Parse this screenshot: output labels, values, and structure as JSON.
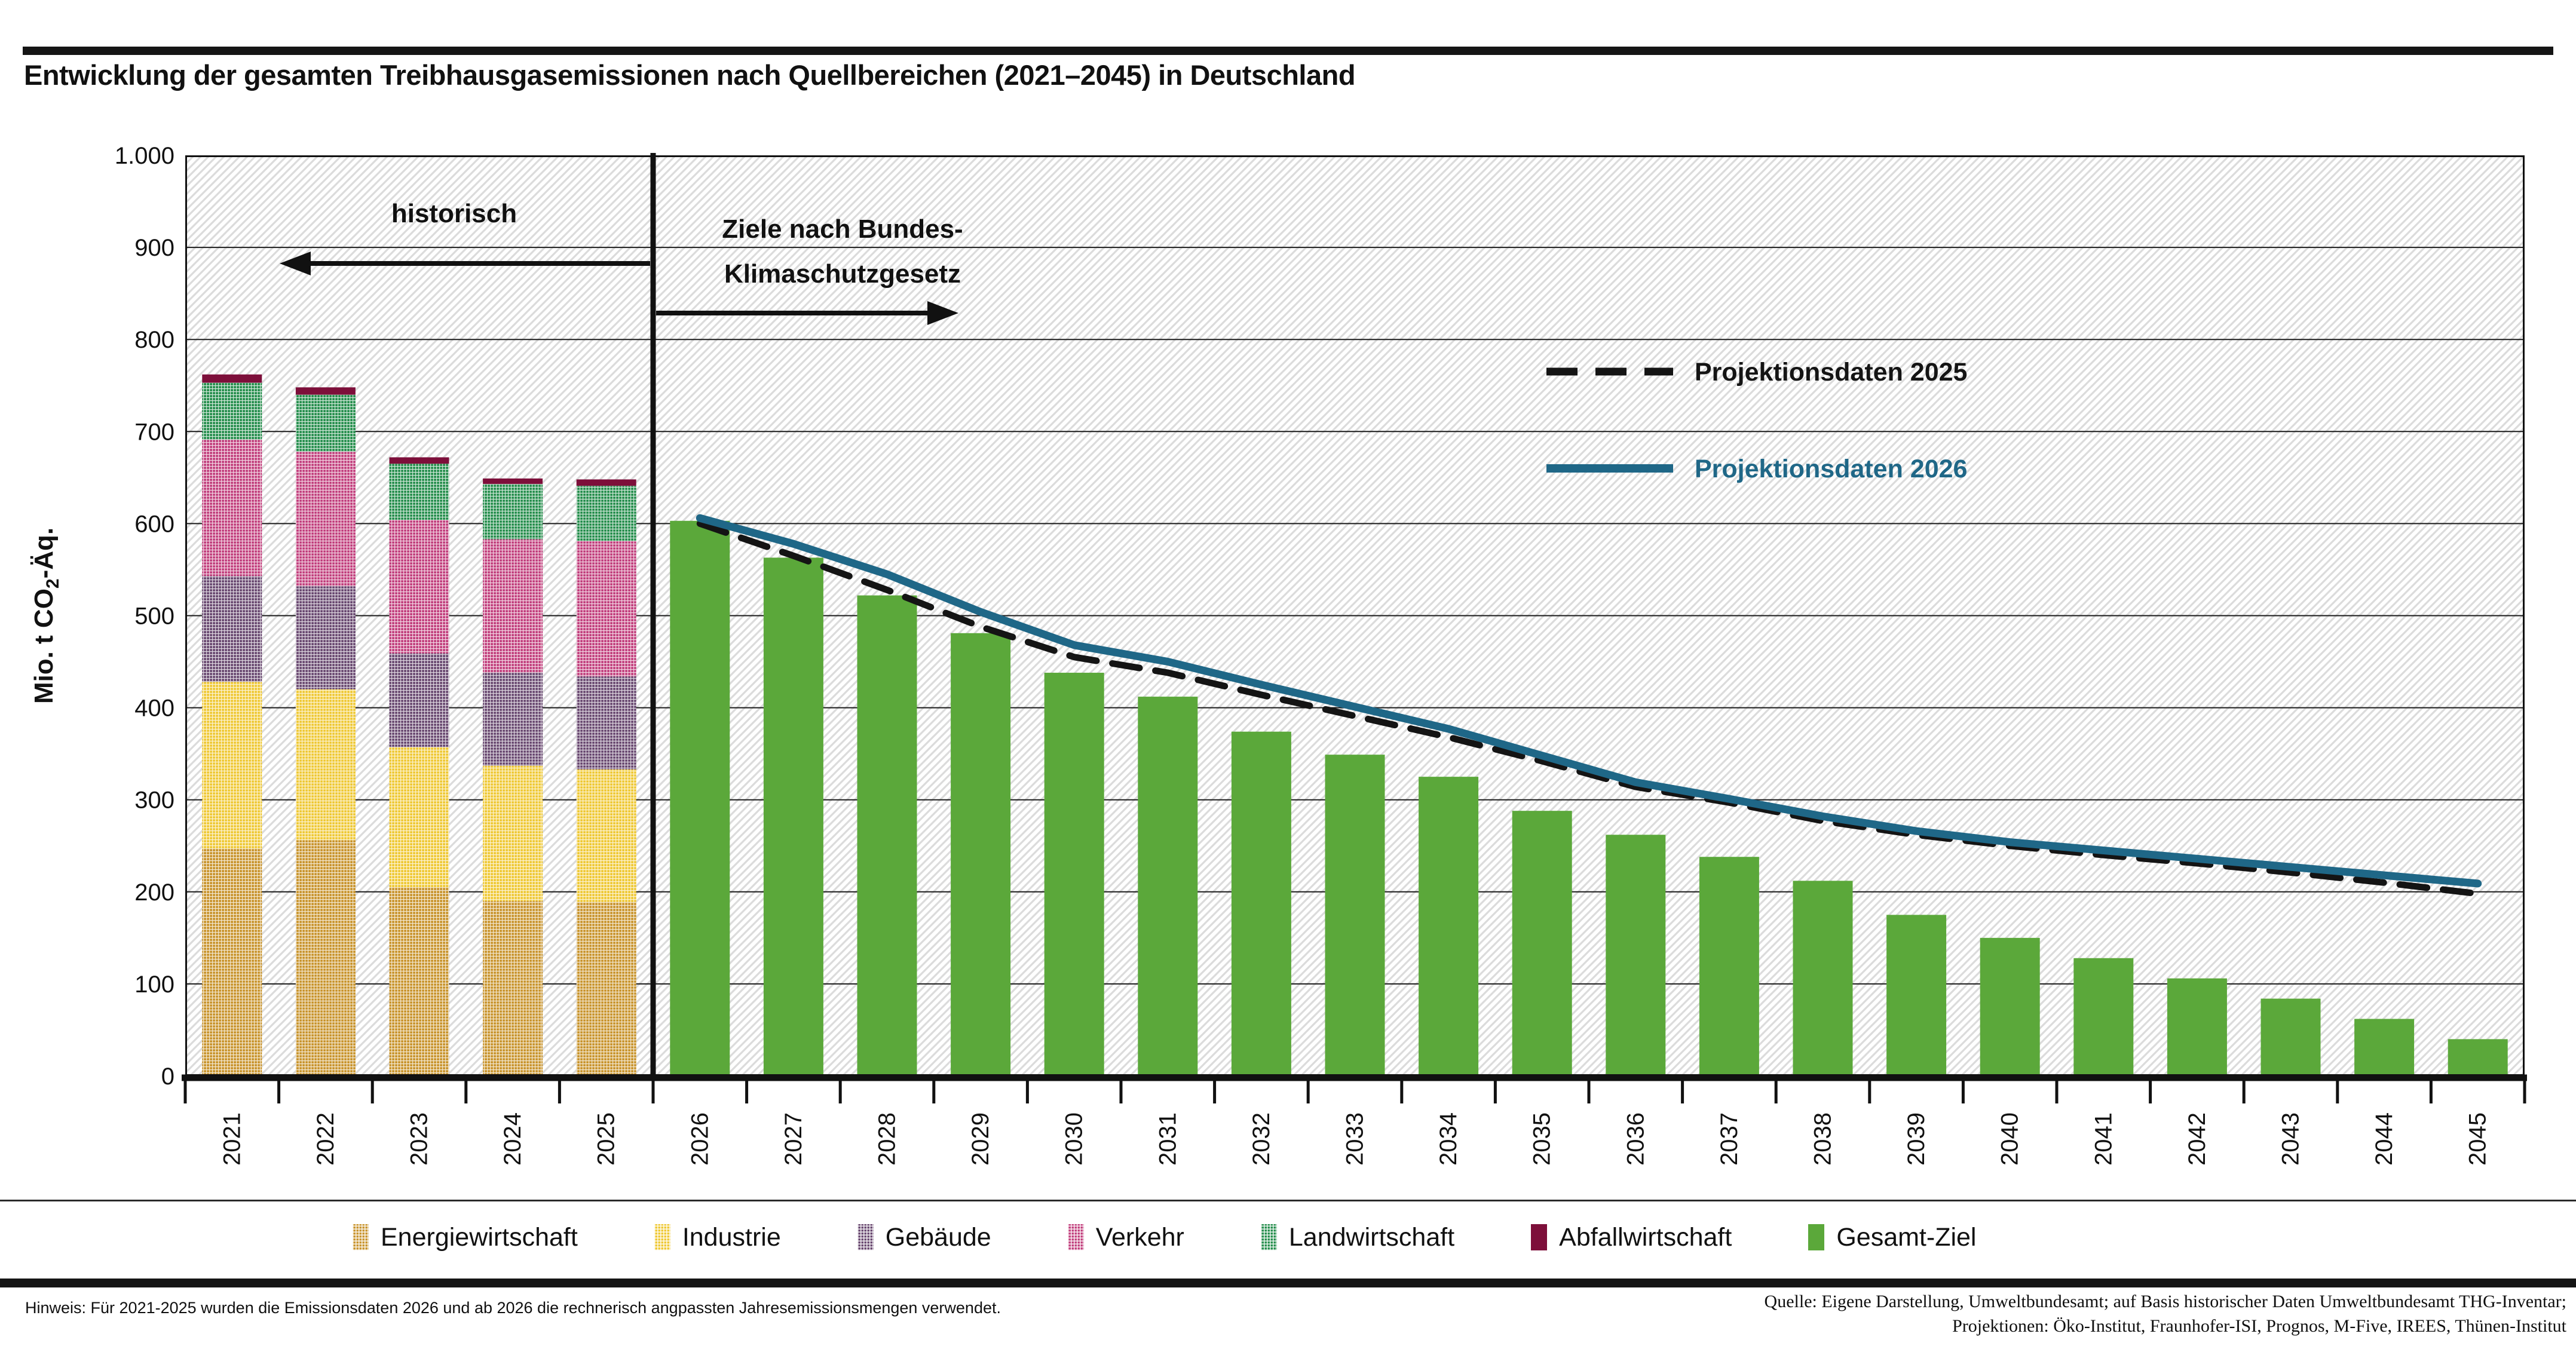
{
  "title": "Entwicklung der gesamten Treibhausgasemissionen nach Quellbereichen (2021–2045) in Deutschland",
  "y_axis": {
    "label": "Mio. t CO₂-Äq.",
    "ticks": [
      "0",
      "100",
      "200",
      "300",
      "400",
      "500",
      "600",
      "700",
      "800",
      "900",
      "1.000"
    ]
  },
  "annotations": {
    "historical_label": "historisch",
    "targets_label_line1": "Ziele nach Bundes-",
    "targets_label_line2": "Klimaschutzgesetz"
  },
  "line_legend": [
    {
      "label": "Projektionsdaten 2025",
      "color": "#141414",
      "dashed": true
    },
    {
      "label": "Projektionsdaten 2026",
      "color": "#1F6787",
      "dashed": false
    }
  ],
  "sector_legend": [
    {
      "label": "Energiewirtschaft",
      "color": "#C9952F",
      "pattern": "weave"
    },
    {
      "label": "Industrie",
      "color": "#EFC937",
      "pattern": "weave"
    },
    {
      "label": "Gebäude",
      "color": "#6B4B72",
      "pattern": "weave"
    },
    {
      "label": "Verkehr",
      "color": "#C2417E",
      "pattern": "weave"
    },
    {
      "label": "Landwirtschaft",
      "color": "#278F4E",
      "pattern": "weave"
    },
    {
      "label": "Abfallwirtschaft",
      "color": "#7D0F3A",
      "pattern": "solid"
    },
    {
      "label": "Gesamt-Ziel",
      "color": "#5BA83A",
      "pattern": "solid"
    }
  ],
  "footnote": "Hinweis: Für 2021-2025 wurden die Emissionsdaten 2026 und ab 2026 die rechnerisch angpassten Jahresemissionsmengen verwendet.",
  "source_line1": "Quelle: Eigene Darstellung, Umweltbundesamt; auf Basis historischer Daten Umweltbundesamt THG-Inventar;",
  "source_line2": "Projektionen: Öko-Institut, Fraunhofer-ISI, Prognos, M-Five, IREES, Thünen-Institut",
  "chart_data": {
    "type": "combo: stacked-bar + bar + line",
    "title": "Entwicklung der gesamten Treibhausgasemissionen nach Quellbereichen (2021–2045) in Deutschland",
    "ylabel": "Mio. t CO₂-Äq.",
    "ylim": [
      0,
      1000
    ],
    "grid": true,
    "categories": [
      "2021",
      "2022",
      "2023",
      "2024",
      "2025",
      "2026",
      "2027",
      "2028",
      "2029",
      "2030",
      "2031",
      "2032",
      "2033",
      "2034",
      "2035",
      "2036",
      "2037",
      "2038",
      "2039",
      "2040",
      "2041",
      "2042",
      "2043",
      "2044",
      "2045"
    ],
    "stacked_bars": {
      "years": [
        "2021",
        "2022",
        "2023",
        "2024",
        "2025"
      ],
      "sectors": [
        {
          "name": "Energiewirtschaft",
          "color": "#C9952F",
          "pattern": "weave",
          "values": [
            247,
            256,
            205,
            190,
            189
          ]
        },
        {
          "name": "Industrie",
          "color": "#EFC937",
          "pattern": "weave",
          "values": [
            181,
            164,
            152,
            147,
            144
          ]
        },
        {
          "name": "Gebäude",
          "color": "#6B4B72",
          "pattern": "weave",
          "values": [
            115,
            112,
            102,
            101,
            101
          ]
        },
        {
          "name": "Verkehr",
          "color": "#C2417E",
          "pattern": "weave",
          "values": [
            148,
            146,
            145,
            145,
            147
          ]
        },
        {
          "name": "Landwirtschaft",
          "color": "#278F4E",
          "pattern": "weave",
          "values": [
            62,
            62,
            61,
            60,
            60
          ]
        },
        {
          "name": "Abfallwirtschaft",
          "color": "#7D0F3A",
          "pattern": "solid",
          "values": [
            9,
            8,
            7,
            6,
            7
          ]
        }
      ],
      "totals": [
        762,
        748,
        672,
        649,
        648
      ]
    },
    "target_bars": {
      "name": "Gesamt-Ziel",
      "color": "#5BA83A",
      "years": [
        "2026",
        "2027",
        "2028",
        "2029",
        "2030",
        "2031",
        "2032",
        "2033",
        "2034",
        "2035",
        "2036",
        "2037",
        "2038",
        "2039",
        "2040",
        "2041",
        "2042",
        "2043",
        "2044",
        "2045"
      ],
      "values": [
        603,
        563,
        522,
        481,
        438,
        412,
        374,
        349,
        325,
        288,
        262,
        238,
        212,
        175,
        150,
        128,
        106,
        84,
        62,
        40
      ]
    },
    "lines": [
      {
        "name": "Projektionsdaten 2025",
        "color": "#141414",
        "dashed": true,
        "years": [
          "2026",
          "2027",
          "2028",
          "2029",
          "2030",
          "2031",
          "2032",
          "2033",
          "2034",
          "2035",
          "2036",
          "2037",
          "2038",
          "2039",
          "2040",
          "2041",
          "2042",
          "2043",
          "2044",
          "2045"
        ],
        "values": [
          600,
          565,
          528,
          488,
          455,
          438,
          414,
          391,
          368,
          342,
          314,
          297,
          277,
          262,
          250,
          240,
          231,
          221,
          210,
          198
        ]
      },
      {
        "name": "Projektionsdaten 2026",
        "color": "#1F6787",
        "dashed": false,
        "years": [
          "2026",
          "2027",
          "2028",
          "2029",
          "2030",
          "2031",
          "2032",
          "2033",
          "2034",
          "2035",
          "2036",
          "2037",
          "2038",
          "2039",
          "2040",
          "2041",
          "2042",
          "2043",
          "2044",
          "2045"
        ],
        "values": [
          606,
          578,
          545,
          504,
          468,
          450,
          425,
          401,
          377,
          348,
          319,
          301,
          282,
          266,
          254,
          245,
          236,
          227,
          218,
          209
        ]
      }
    ],
    "annotations": [
      "historisch (links der Trennlinie)",
      "Ziele nach Bundes-Klimaschutzgesetz (rechts der Trennlinie)"
    ],
    "legend_position": "bottom"
  }
}
